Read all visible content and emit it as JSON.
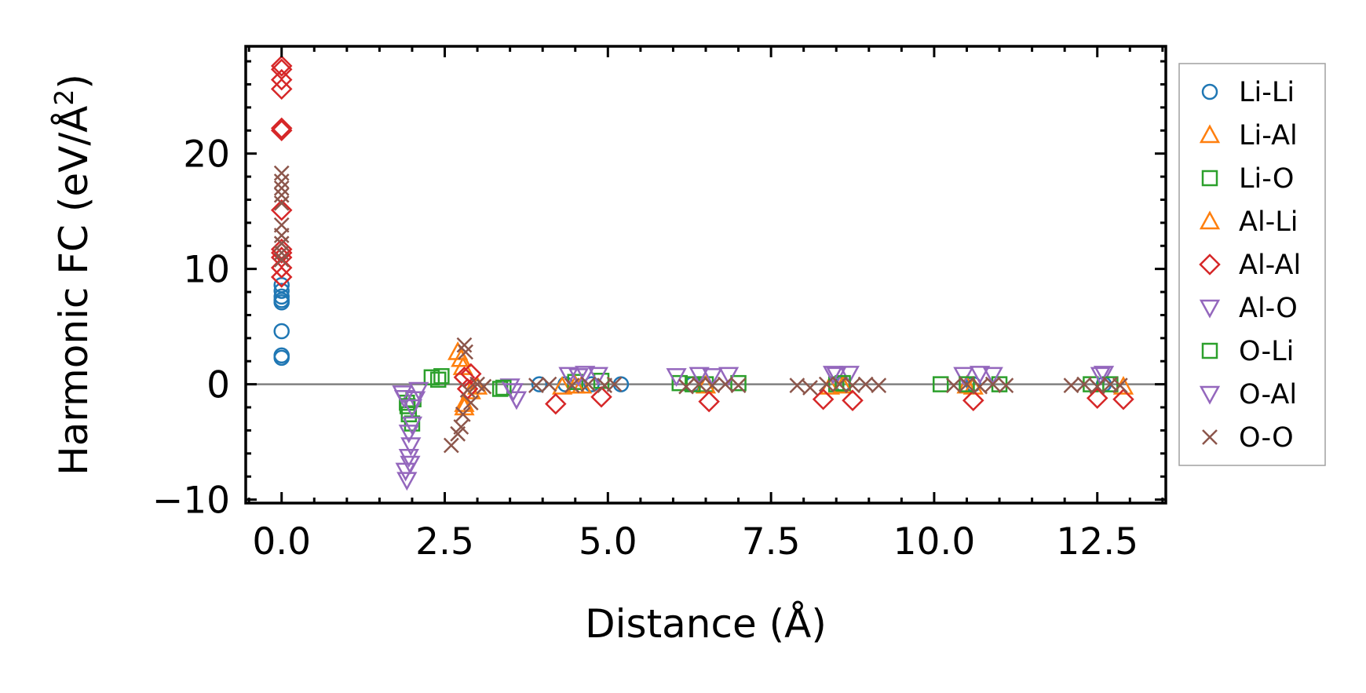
{
  "chart_data": {
    "type": "scatter",
    "xlabel": "Distance (Å)",
    "ylabel_main": "Harmonic FC (eV/Å",
    "ylabel_sup": "2",
    "ylabel_close": ")",
    "xlim": [
      -0.55,
      13.55
    ],
    "ylim": [
      -10.3,
      29.3
    ],
    "xticks": [
      0.0,
      2.5,
      5.0,
      7.5,
      10.0,
      12.5
    ],
    "xtick_labels": [
      "0.0",
      "2.5",
      "5.0",
      "7.5",
      "10.0",
      "12.5"
    ],
    "yticks": [
      -10,
      0,
      10,
      20
    ],
    "ytick_labels": [
      "−10",
      "0",
      "10",
      "20"
    ],
    "zero_line": true,
    "legend_position": "outside-right",
    "series": [
      {
        "name": "Li-Li",
        "marker": "circle",
        "color": "#1f77b4",
        "points": [
          [
            0,
            2.3
          ],
          [
            0,
            2.5
          ],
          [
            0,
            4.6
          ],
          [
            0,
            7.1
          ],
          [
            0,
            7.3
          ],
          [
            0,
            7.6
          ],
          [
            0,
            8.1
          ],
          [
            0,
            8.6
          ],
          [
            3.95,
            0
          ],
          [
            4.35,
            0
          ],
          [
            4.75,
            0
          ],
          [
            5.2,
            0
          ],
          [
            6.3,
            0
          ],
          [
            8.6,
            0
          ],
          [
            10.6,
            0
          ],
          [
            12.6,
            0
          ]
        ]
      },
      {
        "name": "Li-Al",
        "marker": "triangle-up",
        "color": "#ff7f0e",
        "points": [
          [
            2.75,
            2.2
          ],
          [
            2.78,
            1.5
          ],
          [
            2.8,
            -1.7
          ],
          [
            2.9,
            -0.6
          ],
          [
            3.0,
            -0.2
          ],
          [
            4.3,
            -0.2
          ],
          [
            4.6,
            -0.1
          ],
          [
            8.4,
            -0.2
          ],
          [
            10.6,
            -0.2
          ],
          [
            12.9,
            -0.2
          ]
        ]
      },
      {
        "name": "Li-O",
        "marker": "square",
        "color": "#2ca02c",
        "points": [
          [
            1.92,
            -1.6
          ],
          [
            1.95,
            -2.6
          ],
          [
            2.0,
            -3.4
          ],
          [
            2.02,
            -1.3
          ],
          [
            2.3,
            0.6
          ],
          [
            2.45,
            0.7
          ],
          [
            3.35,
            -0.4
          ],
          [
            4.5,
            0.2
          ],
          [
            4.9,
            0.3
          ],
          [
            6.1,
            0.1
          ],
          [
            6.5,
            0
          ],
          [
            7.0,
            0.1
          ],
          [
            8.5,
            0
          ],
          [
            10.1,
            0
          ],
          [
            11.0,
            0
          ],
          [
            12.4,
            0
          ]
        ]
      },
      {
        "name": "Al-Li",
        "marker": "triangle-up",
        "color": "#ff7f0e",
        "points": [
          [
            2.7,
            2.8
          ],
          [
            2.8,
            -2.0
          ],
          [
            4.5,
            -0.1
          ],
          [
            6.5,
            -0.1
          ],
          [
            8.6,
            -0.1
          ],
          [
            10.5,
            -0.1
          ]
        ]
      },
      {
        "name": "Al-Al",
        "marker": "diamond",
        "color": "#d62728",
        "points": [
          [
            0,
            27.6
          ],
          [
            0,
            27.3
          ],
          [
            0,
            26.4
          ],
          [
            0,
            25.6
          ],
          [
            0,
            22.2
          ],
          [
            0,
            22.0
          ],
          [
            0,
            15.1
          ],
          [
            0,
            11.7
          ],
          [
            0,
            11.4
          ],
          [
            0,
            11.0
          ],
          [
            0,
            10.1
          ],
          [
            0,
            9.3
          ],
          [
            2.8,
            0.6
          ],
          [
            2.85,
            -0.4
          ],
          [
            2.9,
            0.9
          ],
          [
            4.2,
            -1.7
          ],
          [
            4.9,
            -1.1
          ],
          [
            6.55,
            -1.5
          ],
          [
            8.3,
            -1.3
          ],
          [
            8.75,
            -1.4
          ],
          [
            10.6,
            -1.4
          ],
          [
            12.5,
            -1.2
          ],
          [
            12.9,
            -1.3
          ]
        ]
      },
      {
        "name": "Al-O",
        "marker": "triangle-down",
        "color": "#9467bd",
        "points": [
          [
            1.85,
            -0.8
          ],
          [
            1.9,
            -7.5
          ],
          [
            1.92,
            -8.3
          ],
          [
            1.95,
            -6.3
          ],
          [
            1.97,
            -6.9
          ],
          [
            1.98,
            -5.3
          ],
          [
            2.0,
            -3.5
          ],
          [
            2.05,
            -1.3
          ],
          [
            2.1,
            -0.5
          ],
          [
            3.5,
            -0.2
          ],
          [
            3.6,
            -1.3
          ],
          [
            4.4,
            0.8
          ],
          [
            4.65,
            0.9
          ],
          [
            4.85,
            0.8
          ],
          [
            6.05,
            0.7
          ],
          [
            6.6,
            0.7
          ],
          [
            6.85,
            0.8
          ],
          [
            8.5,
            0.8
          ],
          [
            8.7,
            0.9
          ],
          [
            10.45,
            0.8
          ],
          [
            10.9,
            0.8
          ],
          [
            12.6,
            0.9
          ]
        ]
      },
      {
        "name": "O-Li",
        "marker": "square",
        "color": "#2ca02c",
        "points": [
          [
            1.93,
            -1.9
          ],
          [
            2.4,
            0.4
          ],
          [
            3.4,
            -0.3
          ],
          [
            6.3,
            0
          ],
          [
            8.6,
            0.1
          ],
          [
            10.5,
            0
          ],
          [
            12.7,
            0
          ]
        ]
      },
      {
        "name": "O-Al",
        "marker": "triangle-down",
        "color": "#9467bd",
        "points": [
          [
            1.88,
            -1.2
          ],
          [
            1.95,
            -4.2
          ],
          [
            2.0,
            -2.0
          ],
          [
            3.55,
            -0.6
          ],
          [
            4.55,
            0.7
          ],
          [
            6.4,
            0.8
          ],
          [
            8.45,
            0.9
          ],
          [
            10.7,
            0.9
          ],
          [
            12.55,
            0.8
          ]
        ]
      },
      {
        "name": "O-O",
        "marker": "x",
        "color": "#8c564b",
        "points": [
          [
            0,
            18.3
          ],
          [
            0,
            17.6
          ],
          [
            0,
            17.0
          ],
          [
            0,
            16.4
          ],
          [
            0,
            15.7
          ],
          [
            0,
            13.8
          ],
          [
            0,
            12.9
          ],
          [
            0,
            12.2
          ],
          [
            0,
            11.4
          ],
          [
            0,
            10.8
          ],
          [
            2.6,
            -5.3
          ],
          [
            2.7,
            -4.3
          ],
          [
            2.75,
            -3.7
          ],
          [
            2.78,
            -2.6
          ],
          [
            2.8,
            3.4
          ],
          [
            2.82,
            2.8
          ],
          [
            2.85,
            -0.5
          ],
          [
            2.9,
            -1.6
          ],
          [
            3.0,
            0
          ],
          [
            3.1,
            -0.2
          ],
          [
            3.9,
            -0.1
          ],
          [
            4.1,
            0
          ],
          [
            4.45,
            -0.1
          ],
          [
            4.7,
            0
          ],
          [
            4.95,
            -0.1
          ],
          [
            5.1,
            0
          ],
          [
            6.2,
            -0.2
          ],
          [
            6.4,
            0
          ],
          [
            6.6,
            -0.1
          ],
          [
            6.8,
            0
          ],
          [
            7.0,
            -0.1
          ],
          [
            7.9,
            -0.1
          ],
          [
            8.1,
            -0.3
          ],
          [
            8.35,
            0
          ],
          [
            8.55,
            0
          ],
          [
            8.75,
            -0.1
          ],
          [
            8.95,
            0
          ],
          [
            9.15,
            -0.1
          ],
          [
            10.3,
            -0.1
          ],
          [
            10.5,
            0
          ],
          [
            10.7,
            -0.2
          ],
          [
            10.9,
            0
          ],
          [
            11.1,
            -0.1
          ],
          [
            12.1,
            -0.1
          ],
          [
            12.3,
            0
          ],
          [
            12.5,
            -0.2
          ],
          [
            12.7,
            0
          ],
          [
            12.85,
            -0.1
          ]
        ]
      }
    ]
  }
}
